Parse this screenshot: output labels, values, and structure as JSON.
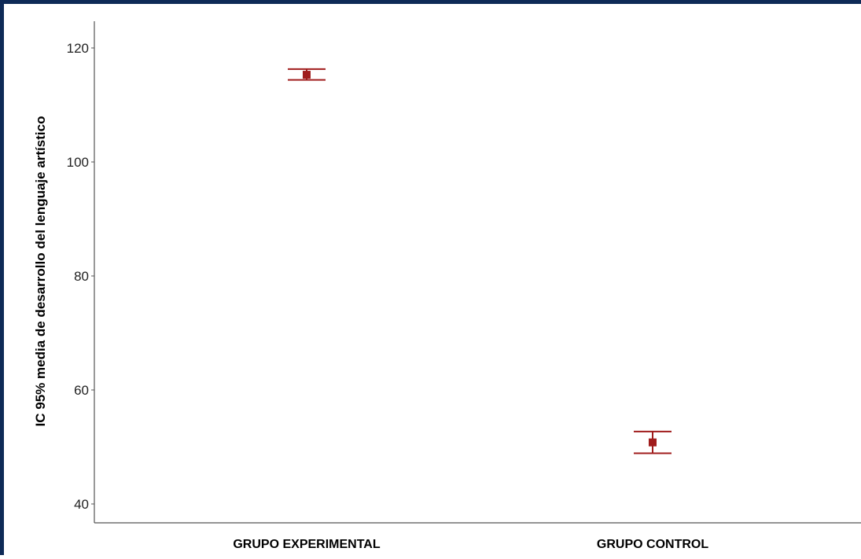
{
  "chart_data": {
    "type": "errorbar",
    "title": "",
    "xlabel": "",
    "ylabel": "IC 95% media de desarrollo del lenguaje artístico",
    "ylim": [
      38,
      125
    ],
    "yticks": [
      40,
      60,
      80,
      100,
      120
    ],
    "categories": [
      "GRUPO EXPERIMENTAL",
      "GRUPO CONTROL"
    ],
    "series": [
      {
        "means": [
          115.3,
          50.8
        ],
        "lower": [
          114.4,
          48.9
        ],
        "upper": [
          116.3,
          52.7
        ]
      }
    ],
    "color": "#a01c1c",
    "grid": false,
    "legend": "none"
  },
  "frame_color": "#0e2a57"
}
